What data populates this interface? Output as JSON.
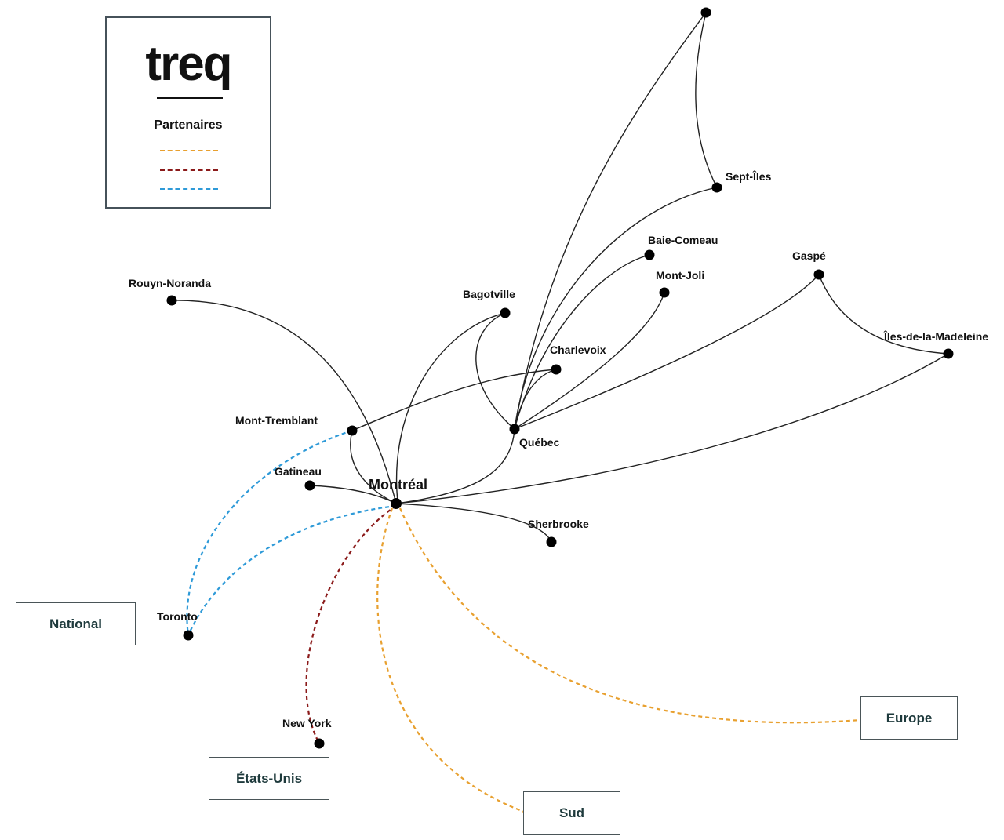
{
  "legend": {
    "logo": "treq",
    "title": "Partenaires",
    "lines": [
      {
        "color": "#e8a02f"
      },
      {
        "color": "#8b1a1a"
      },
      {
        "color": "#2e9ad8"
      }
    ]
  },
  "nodes": {
    "montreal": "Montréal",
    "quebec": "Québec",
    "rouyn": "Rouyn-Noranda",
    "bagotville": "Bagotville",
    "charlevoix": "Charlevoix",
    "tremblant": "Mont-Tremblant",
    "gatineau": "Gatineau",
    "sherbrooke": "Sherbrooke",
    "toronto": "Toronto",
    "newyork": "New York",
    "septiles": "Sept-Îles",
    "baiecomeau": "Baie-Comeau",
    "montjoli": "Mont-Joli",
    "gaspe": "Gaspé",
    "iles": "Îles-de-la-Madeleine"
  },
  "regions": {
    "national": "National",
    "etats_unis": "États-Unis",
    "sud": "Sud",
    "europe": "Europe"
  },
  "colors": {
    "orange": "#e8a02f",
    "red": "#8b1a1a",
    "blue": "#2e9ad8",
    "edge": "#222222"
  }
}
